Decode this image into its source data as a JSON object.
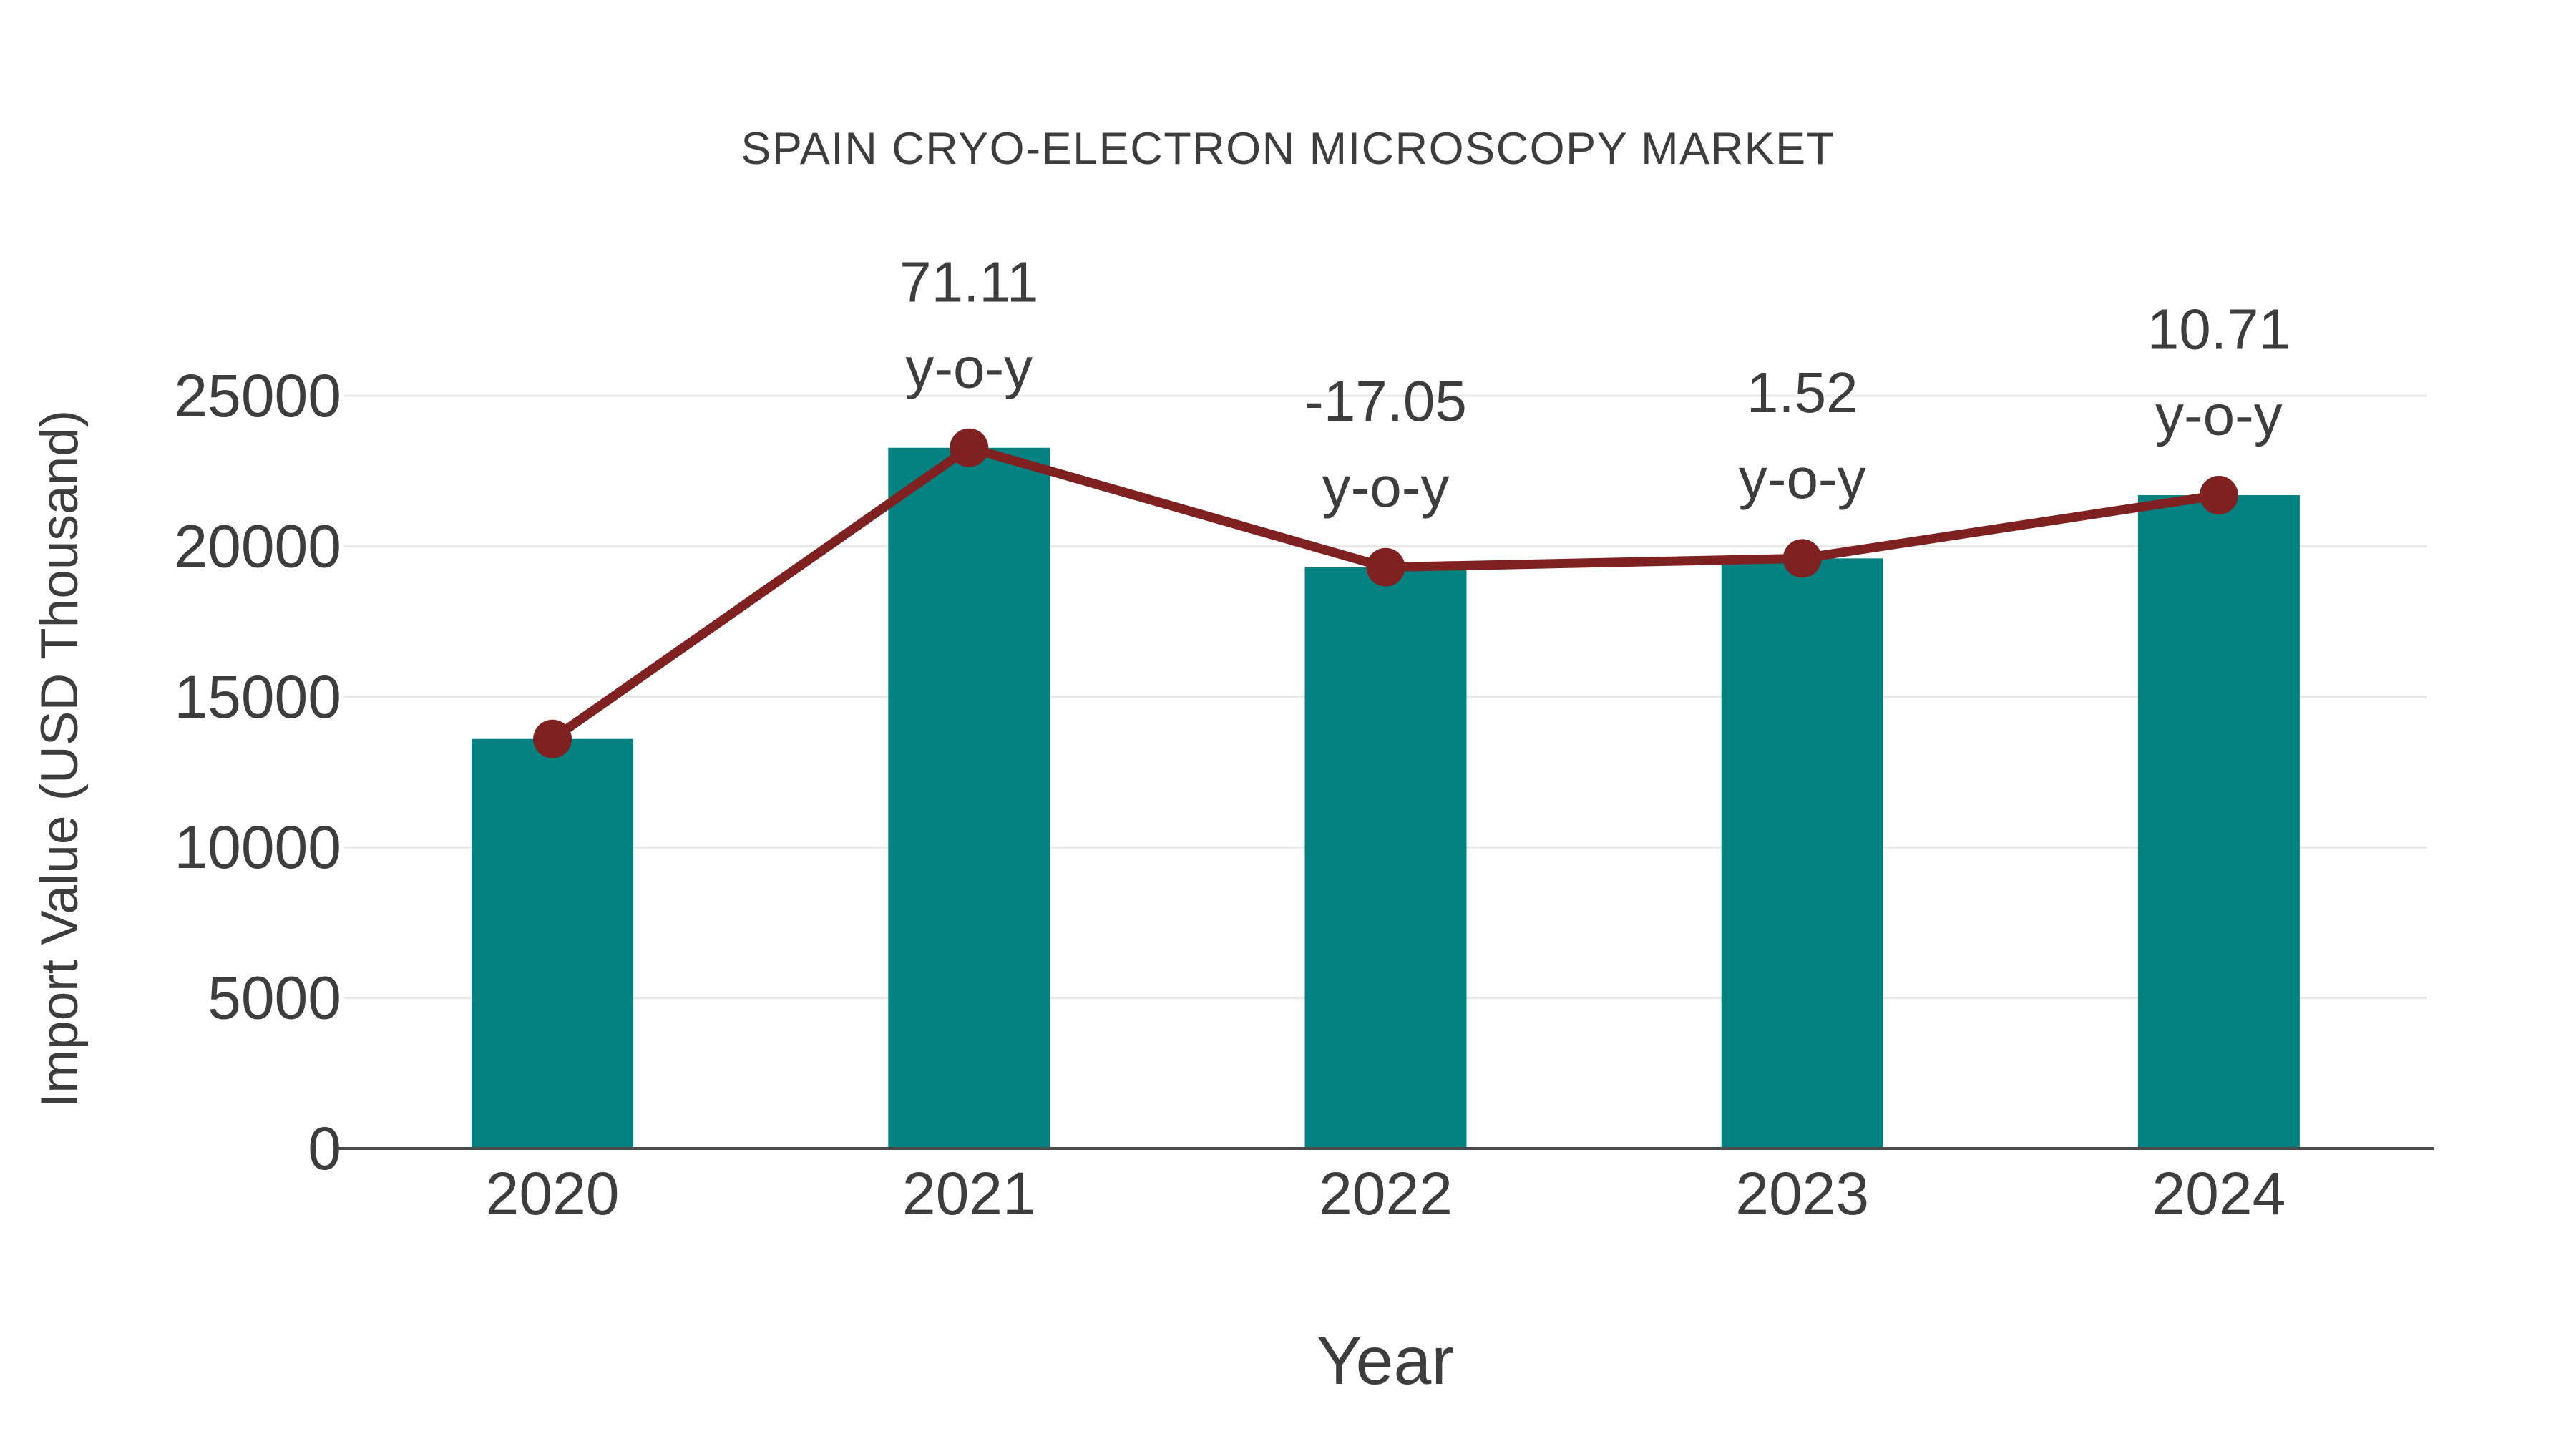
{
  "chart_data": {
    "type": "bar",
    "title": "SPAIN CRYO-ELECTRON MICROSCOPY MARKET",
    "xlabel": "Year",
    "ylabel": "Import Value (USD Thousand)",
    "categories": [
      "2020",
      "2021",
      "2022",
      "2023",
      "2024"
    ],
    "values": [
      13600,
      23271,
      19303,
      19597,
      21696
    ],
    "line_overlay": {
      "name": "import-value-trend-line",
      "follows_bar_tops": true,
      "markers": true
    },
    "annotations": [
      {
        "category": "2021",
        "value": "71.11",
        "suffix": "y-o-y"
      },
      {
        "category": "2022",
        "value": "-17.05",
        "suffix": "y-o-y"
      },
      {
        "category": "2023",
        "value": "1.52",
        "suffix": "y-o-y"
      },
      {
        "category": "2024",
        "value": "10.71",
        "suffix": "y-o-y"
      }
    ],
    "yticks": [
      0,
      5000,
      10000,
      15000,
      20000,
      25000
    ],
    "ylim": [
      0,
      26300
    ],
    "grid": true,
    "legend": "none",
    "colors": {
      "bar": "#048181",
      "line": "#7e2120",
      "grid": "#e9e9e9",
      "axis": "#4a4a4a",
      "text": "#3d3d3d"
    }
  }
}
